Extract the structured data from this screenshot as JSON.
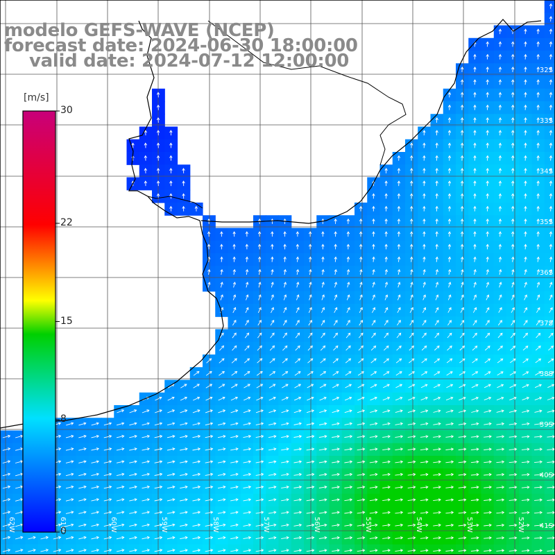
{
  "title": {
    "line1": "modelo GEFS-WAVE (NCEP)",
    "line2": "forecast date: 2024-06-30 18:00:00",
    "line3": "valid date: 2024-07-12 12:00:00"
  },
  "colorbar": {
    "unit": "[m/s]",
    "min": 0,
    "max": 30,
    "ticks": [
      "0",
      "8",
      "15",
      "22",
      "30"
    ]
  },
  "map": {
    "lat_labels": [
      "32S",
      "33S",
      "34S",
      "35S",
      "36S",
      "37S",
      "38S",
      "39S",
      "40S",
      "41S"
    ],
    "lon_labels": [
      "62W",
      "61W",
      "60W",
      "59W",
      "58W",
      "57W",
      "56W",
      "55W",
      "54W",
      "53W",
      "52W"
    ],
    "colors": {
      "grid": "#555555",
      "coast": "#000000",
      "arrow": "#ffffff",
      "land": "#ffffff",
      "title": "#8a8a8a"
    }
  },
  "chart_data": {
    "type": "heatmap",
    "variable": "wind speed and direction",
    "unit": "[m/s]",
    "value_range": [
      0,
      30
    ],
    "colormap": [
      "blue",
      "cyan",
      "green",
      "yellow",
      "red",
      "magenta"
    ],
    "x": [
      "62W",
      "61W",
      "60W",
      "59W",
      "58W",
      "57W",
      "56W",
      "55W",
      "54W",
      "53W",
      "52W"
    ],
    "y": [
      "32S",
      "33S",
      "34S",
      "35S",
      "36S",
      "37S",
      "38S",
      "39S",
      "40S",
      "41S"
    ]
  }
}
